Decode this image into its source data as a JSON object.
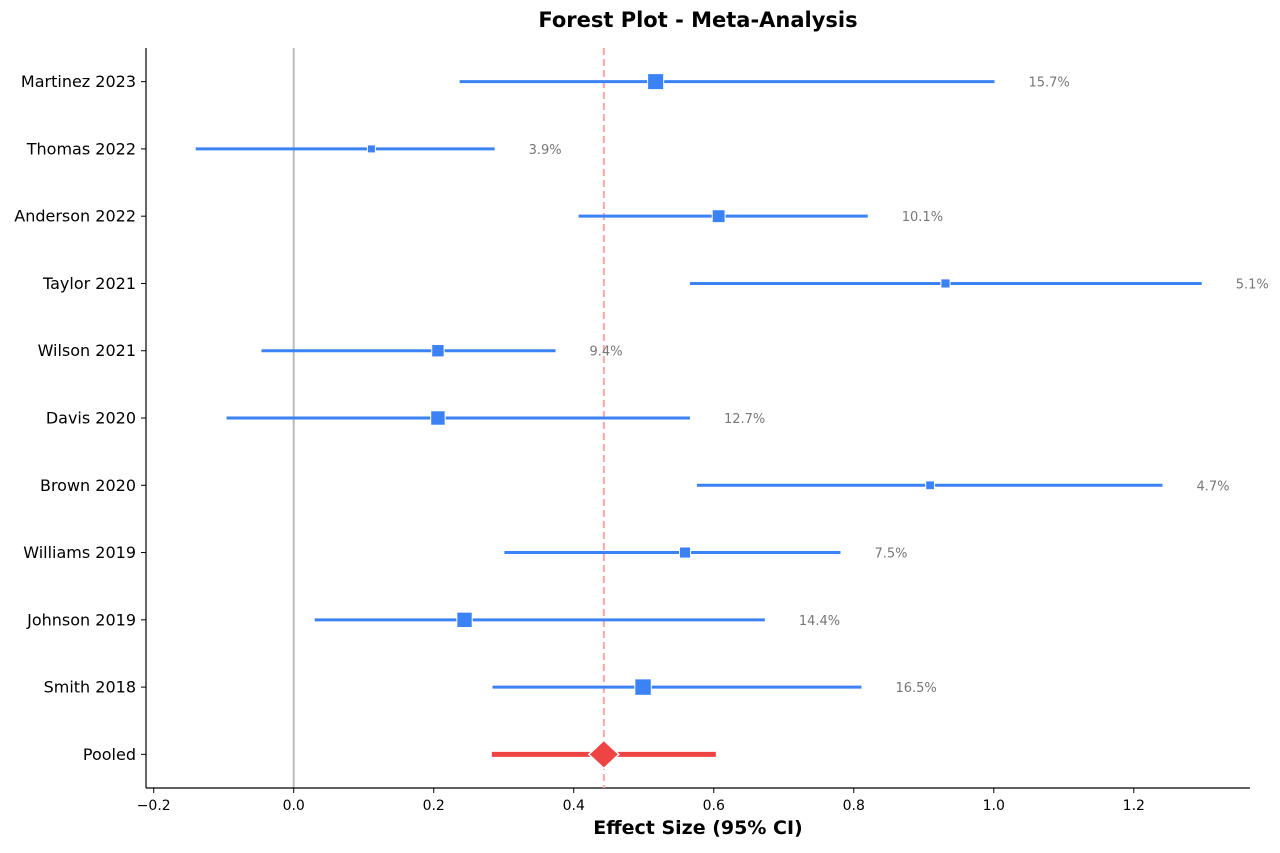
{
  "chart_data": {
    "type": "forest",
    "title": "Forest Plot - Meta-Analysis",
    "xlabel": "Effect Size (95% CI)",
    "xlim": [
      -0.211,
      1.366
    ],
    "xticks": [
      -0.2,
      0.0,
      0.2,
      0.4,
      0.6,
      0.8,
      1.0,
      1.2
    ],
    "xtick_labels": [
      "−0.2",
      "0.0",
      "0.2",
      "0.4",
      "0.6",
      "0.8",
      "1.0",
      "1.2"
    ],
    "null_line": 0,
    "pooled_line": 0.443,
    "grid": false,
    "colors": {
      "study": "#3b82f6",
      "pooled": "#ef4444",
      "pooled_line": "#fca5a5",
      "null_line": "#bbbbbb",
      "weight_text": "#777777"
    },
    "studies": [
      {
        "label": "Martinez 2023",
        "effect": 0.517,
        "lower": 0.237,
        "upper": 1.001,
        "weight": 15.7,
        "weight_label": "15.7%"
      },
      {
        "label": "Thomas 2022",
        "effect": 0.111,
        "lower": -0.14,
        "upper": 0.287,
        "weight": 3.9,
        "weight_label": "3.9%"
      },
      {
        "label": "Anderson 2022",
        "effect": 0.607,
        "lower": 0.407,
        "upper": 0.82,
        "weight": 10.1,
        "weight_label": "10.1%"
      },
      {
        "label": "Taylor 2021",
        "effect": 0.931,
        "lower": 0.566,
        "upper": 1.297,
        "weight": 5.1,
        "weight_label": "5.1%"
      },
      {
        "label": "Wilson 2021",
        "effect": 0.206,
        "lower": -0.046,
        "upper": 0.374,
        "weight": 9.4,
        "weight_label": "9.4%"
      },
      {
        "label": "Davis 2020",
        "effect": 0.206,
        "lower": -0.096,
        "upper": 0.566,
        "weight": 12.7,
        "weight_label": "12.7%"
      },
      {
        "label": "Brown 2020",
        "effect": 0.909,
        "lower": 0.576,
        "upper": 1.241,
        "weight": 4.7,
        "weight_label": "4.7%"
      },
      {
        "label": "Williams 2019",
        "effect": 0.559,
        "lower": 0.301,
        "upper": 0.781,
        "weight": 7.5,
        "weight_label": "7.5%"
      },
      {
        "label": "Johnson 2019",
        "effect": 0.244,
        "lower": 0.03,
        "upper": 0.673,
        "weight": 14.4,
        "weight_label": "14.4%"
      },
      {
        "label": "Smith 2018",
        "effect": 0.499,
        "lower": 0.284,
        "upper": 0.811,
        "weight": 16.5,
        "weight_label": "16.5%"
      }
    ],
    "pooled": {
      "label": "Pooled",
      "effect": 0.443,
      "lower": 0.283,
      "upper": 0.603
    }
  }
}
